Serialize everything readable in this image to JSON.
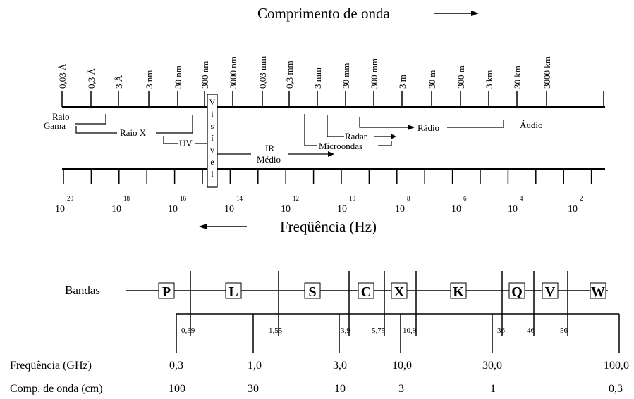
{
  "spectrum": {
    "title_wavelength": "Comprimento de onda",
    "title_frequency": "Freqüência (Hz)",
    "wavelength_ticks": [
      "0,03 Å",
      "0,3 Å",
      "3 Å",
      "3 nm",
      "30 nm",
      "300 nm",
      "3000 nm",
      "0,03 mm",
      "0,3 mm",
      "3 mm",
      "30 mm",
      "300 mm",
      "3 m",
      "30 m",
      "300 m",
      "3 km",
      "30 km",
      "3000 km"
    ],
    "frequency_ticks": [
      {
        "base": "10",
        "exp": "20"
      },
      {
        "base": "10",
        "exp": "18"
      },
      {
        "base": "10",
        "exp": "16"
      },
      {
        "base": "10",
        "exp": "14"
      },
      {
        "base": "10",
        "exp": "12"
      },
      {
        "base": "10",
        "exp": "10"
      },
      {
        "base": "10",
        "exp": "8"
      },
      {
        "base": "10",
        "exp": "6"
      },
      {
        "base": "10",
        "exp": "4"
      },
      {
        "base": "10",
        "exp": "2"
      }
    ],
    "visible_letters": [
      "V",
      "i",
      "s",
      "í",
      "v",
      "e",
      "l"
    ],
    "bands": {
      "gamma_1": "Raio",
      "gamma_2": "Gama",
      "xray": "Raio X",
      "uv": "UV",
      "ir_1": "IR",
      "ir_2": "Médio",
      "radar": "Radar",
      "microwave": "Microondas",
      "radio": "Rádio",
      "audio": "Áudio"
    }
  },
  "radar_bands": {
    "label": "Bandas",
    "names": [
      "P",
      "L",
      "S",
      "C",
      "X",
      "K",
      "Q",
      "V",
      "W"
    ],
    "boundaries": [
      "0,39",
      "1,55",
      "3,9",
      "5,75",
      "10,9",
      "36",
      "46",
      "56"
    ],
    "freq_label": "Freqüência (GHz)",
    "freq_values": [
      "0,3",
      "1,0",
      "3,0",
      "10,0",
      "30,0",
      "100,0"
    ],
    "wave_label": "Comp. de onda (cm)",
    "wave_values": [
      "100",
      "30",
      "10",
      "3",
      "1",
      "0,3"
    ]
  }
}
